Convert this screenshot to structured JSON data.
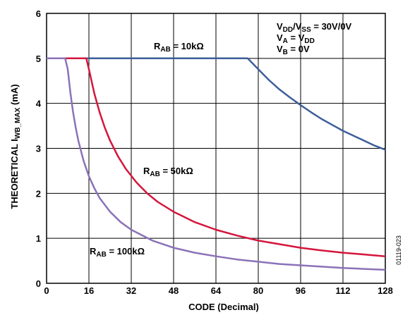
{
  "chart_data": {
    "type": "line",
    "xlabel": "CODE (Decimal)",
    "ylabel": {
      "main": "THEORETICAL I",
      "sub": "WB_MAX",
      "unit": " (mA)"
    },
    "xlim": [
      0,
      128
    ],
    "ylim": [
      0,
      6
    ],
    "xticks": [
      0,
      16,
      32,
      48,
      64,
      80,
      96,
      112,
      128
    ],
    "yticks": [
      0,
      1,
      2,
      3,
      4,
      5,
      6
    ],
    "grid": true,
    "series": [
      {
        "name": "RAB = 10kΩ",
        "color": "#3d5e9a",
        "x": [
          0,
          10,
          20,
          30,
          40,
          50,
          60,
          70,
          76,
          80,
          84,
          88,
          92,
          96,
          100,
          104,
          108,
          112,
          116,
          120,
          124,
          128
        ],
        "y": [
          5,
          5,
          5,
          5,
          5,
          5,
          5,
          5,
          5,
          4.76,
          4.52,
          4.31,
          4.13,
          3.96,
          3.8,
          3.65,
          3.52,
          3.39,
          3.28,
          3.17,
          3.06,
          2.97
        ]
      },
      {
        "name": "RAB = 50kΩ",
        "color": "#d4163c",
        "x": [
          0,
          5,
          10,
          15,
          16,
          18,
          20,
          22,
          24,
          27,
          30,
          34,
          38,
          42,
          48,
          56,
          64,
          72,
          80,
          88,
          96,
          104,
          112,
          120,
          128
        ],
        "y": [
          5,
          5,
          5,
          5,
          4.76,
          4.23,
          3.81,
          3.46,
          3.17,
          2.82,
          2.54,
          2.24,
          2.0,
          1.81,
          1.59,
          1.36,
          1.19,
          1.06,
          0.95,
          0.87,
          0.79,
          0.73,
          0.68,
          0.64,
          0.6
        ]
      },
      {
        "name": "RAB = 100kΩ",
        "color": "#8b72b8",
        "x": [
          0,
          4,
          7,
          8,
          9,
          10,
          11,
          12,
          14,
          16,
          18,
          20,
          24,
          28,
          32,
          40,
          48,
          56,
          64,
          72,
          80,
          88,
          96,
          104,
          112,
          120,
          128
        ],
        "y": [
          5,
          5,
          5,
          4.76,
          4.23,
          3.81,
          3.46,
          3.17,
          2.72,
          2.38,
          2.12,
          1.9,
          1.59,
          1.36,
          1.19,
          0.95,
          0.79,
          0.68,
          0.6,
          0.53,
          0.48,
          0.43,
          0.4,
          0.37,
          0.34,
          0.32,
          0.3
        ]
      }
    ]
  },
  "labels": {
    "r10": {
      "main": "R",
      "sub": "AB",
      "rest": " = 10kΩ"
    },
    "r50": {
      "main": "R",
      "sub": "AB",
      "rest": " = 50kΩ"
    },
    "r100": {
      "main": "R",
      "sub": "AB",
      "rest": " = 100kΩ"
    }
  },
  "conditions": [
    {
      "parts": [
        [
          "V",
          ""
        ],
        [
          "DD",
          "sub"
        ],
        [
          "/V",
          ""
        ],
        [
          "SS",
          "sub"
        ],
        [
          " = 30V/0V",
          ""
        ]
      ]
    },
    {
      "parts": [
        [
          "V",
          ""
        ],
        [
          "A",
          "sub"
        ],
        [
          " = V",
          ""
        ],
        [
          "DD",
          "sub"
        ]
      ]
    },
    {
      "parts": [
        [
          "V",
          ""
        ],
        [
          "B",
          "sub"
        ],
        [
          " = 0V",
          ""
        ]
      ]
    }
  ],
  "figure_id": "01119-023"
}
